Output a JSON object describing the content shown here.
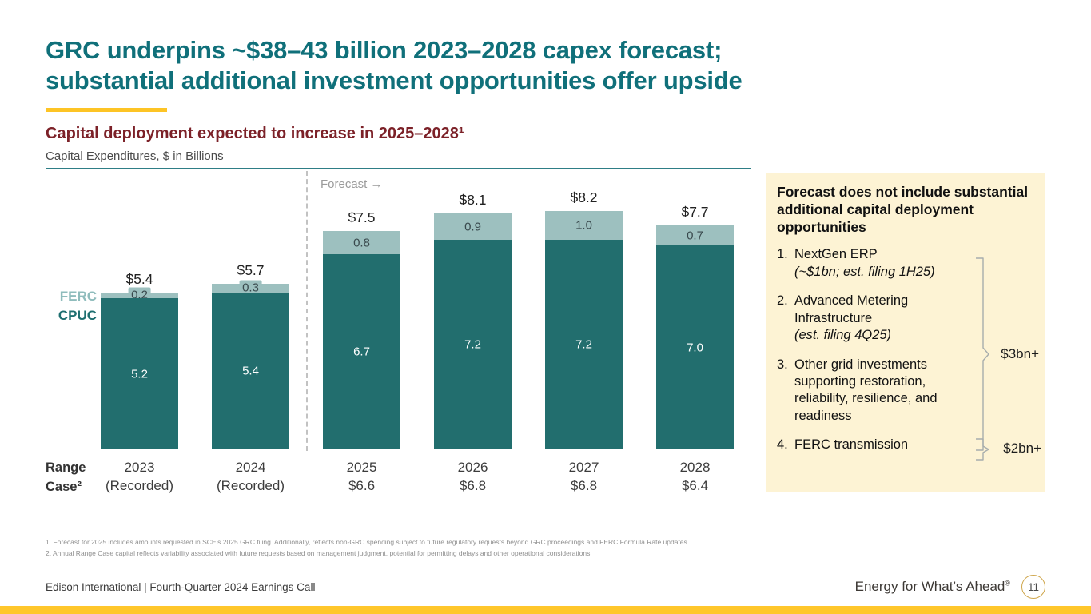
{
  "slide": {
    "title_line1": "GRC underpins ~$38–43 billion 2023–2028 capex forecast;",
    "title_line2": "substantial additional investment opportunities offer upside",
    "headline": "Capital deployment expected to increase in 2025–2028¹",
    "axis_caption": "Capital Expenditures, $ in Billions",
    "forecast_label": "Forecast →",
    "series_label_ferc": "FERC",
    "series_label_cpuc": "CPUC",
    "range_case_line1": "Range",
    "range_case_line2": "Case²"
  },
  "chart_data": {
    "type": "bar",
    "stacked": true,
    "title": "Capital deployment expected to increase in 2025–2028",
    "unit": "$ in Billions",
    "categories": [
      "2023",
      "2024",
      "2025",
      "2026",
      "2027",
      "2028"
    ],
    "category_sublabels": [
      "(Recorded)",
      "(Recorded)",
      "$6.6",
      "$6.8",
      "$6.8",
      "$6.4"
    ],
    "series": [
      {
        "name": "FERC",
        "color": "#9dc0bf",
        "values": [
          0.2,
          0.3,
          0.8,
          0.9,
          1.0,
          0.7
        ]
      },
      {
        "name": "CPUC",
        "color": "#226e6e",
        "values": [
          5.2,
          5.4,
          6.7,
          7.2,
          7.2,
          7.0
        ]
      }
    ],
    "segment_labels": {
      "FERC": [
        "0.2",
        "0.3",
        "0.8",
        "0.9",
        "1.0",
        "0.7"
      ],
      "CPUC": [
        "5.2",
        "5.4",
        "6.7",
        "7.2",
        "7.2",
        "7.0"
      ]
    },
    "totals": [
      "$5.4",
      "$5.7",
      "$7.5",
      "$8.1",
      "$8.2",
      "$7.7"
    ],
    "range_case_values": [
      "",
      "",
      "$6.6",
      "$6.8",
      "$6.8",
      "$6.4"
    ],
    "forecast_start_index": 2,
    "ylim": [
      0,
      8.5
    ],
    "legend_position": "left"
  },
  "callout": {
    "title": "Forecast does not include substantial additional capital deployment opportunities",
    "items": [
      {
        "number": "1.",
        "text": "NextGen ERP",
        "detail": "(~$1bn; est. filing 1H25)"
      },
      {
        "number": "2.",
        "text": "Advanced Metering Infrastructure",
        "detail": "(est. filing 4Q25)"
      },
      {
        "number": "3.",
        "text": "Other grid investments supporting restoration, reliability, resilience, and readiness",
        "detail": ""
      },
      {
        "number": "4.",
        "text": "FERC transmission",
        "detail": ""
      }
    ],
    "bracket_items_1_3_label": "$3bn+",
    "bracket_item_4_label": "$2bn+"
  },
  "footnotes": [
    "1.  Forecast for 2025 includes amounts requested in SCE's 2025 GRC filing. Additionally, reflects non-GRC spending subject to future regulatory requests beyond GRC proceedings and FERC Formula Rate updates",
    "2.  Annual Range Case capital reflects variability associated with future requests based on management judgment, potential for permitting delays and other operational considerations"
  ],
  "footer": {
    "left": "Edison International |  Fourth-Quarter 2024 Earnings Call",
    "tagline": "Energy for What’s Ahead",
    "tagline_mark": "®",
    "page_number": "11"
  },
  "colors": {
    "title_teal": "#10707a",
    "headline_maroon": "#7c2128",
    "cpuc_bar": "#226e6e",
    "ferc_bar": "#9dc0bf",
    "accent_gold": "#ffc72c",
    "callout_bg": "#fdf3d4"
  }
}
